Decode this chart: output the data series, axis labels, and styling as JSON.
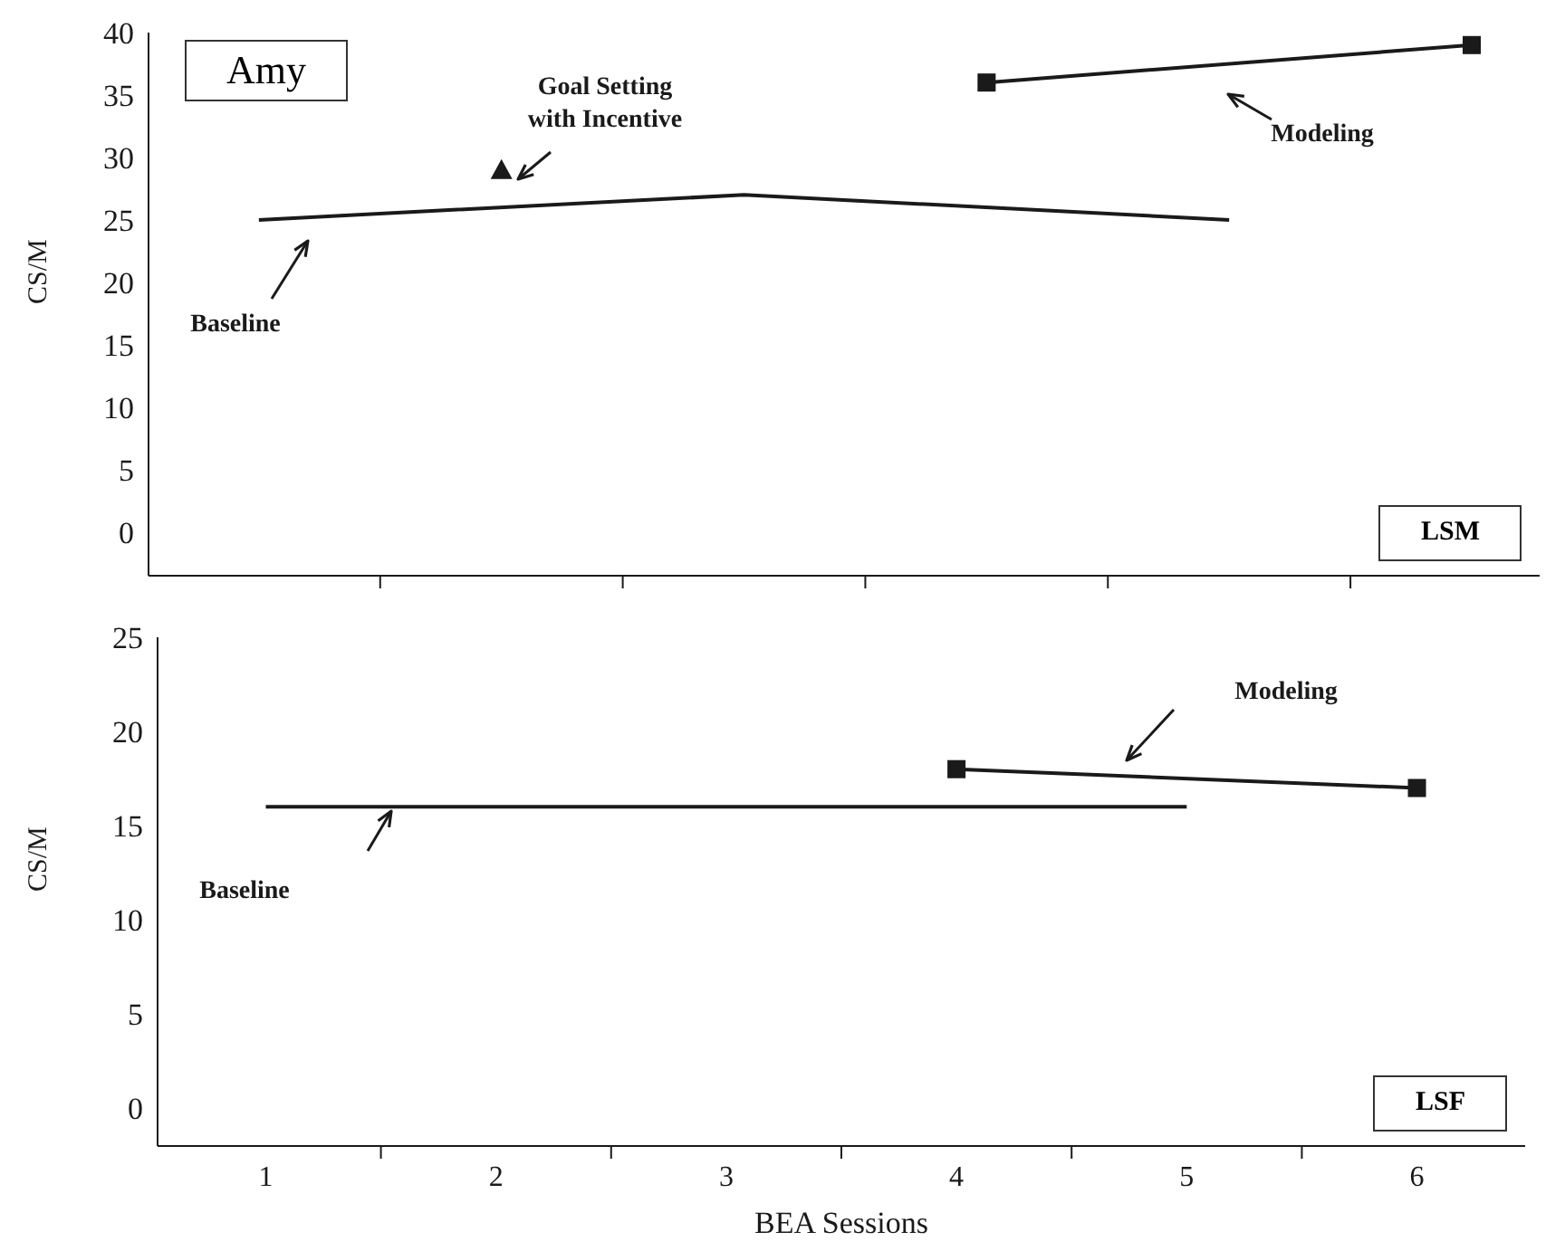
{
  "chart_data": [
    {
      "type": "line",
      "title": "Amy",
      "subtitle": "LSM",
      "ylabel": "CS/M",
      "categories": [
        null,
        null,
        null,
        null,
        null,
        null
      ],
      "ylim": [
        -3.5,
        40
      ],
      "yticks": [
        0,
        5,
        10,
        15,
        20,
        25,
        30,
        35,
        40
      ],
      "tick_labels": "y",
      "line_style": "solid",
      "series": [
        {
          "type": "line",
          "color": "#1a1a1a",
          "marker": "none",
          "values": [
            25,
            null,
            27,
            null,
            25,
            null
          ]
        },
        {
          "type": "scatter",
          "color": "#1a1a1a",
          "marker": "triangle",
          "values": [
            null,
            29,
            null,
            null,
            null,
            null
          ]
        },
        {
          "type": "line",
          "color": "#1a1a1a",
          "marker": "square",
          "values": [
            null,
            null,
            null,
            36,
            null,
            39
          ]
        }
      ],
      "annotations": [
        "Baseline",
        "Goal Setting with Incentive",
        "Modeling"
      ]
    },
    {
      "type": "line",
      "subtitle": "LSF",
      "xlabel": "BEA Sessions",
      "ylabel": "CS/M",
      "xlim": [
        0.53,
        6.47
      ],
      "xticks": [
        1,
        2,
        3,
        4,
        5,
        6,
        {
          "value": 1.5,
          "label": null
        },
        {
          "value": 2.5,
          "label": null
        },
        {
          "value": 3.5,
          "label": null
        },
        {
          "value": 4.5,
          "label": null
        },
        {
          "value": 5.5,
          "label": null
        }
      ],
      "ylim": [
        -2,
        25
      ],
      "yticks": [
        0,
        5,
        10,
        15,
        20,
        25
      ],
      "line_style": "solid",
      "series": [
        {
          "type": "line",
          "color": "#1a1a1a",
          "marker": "none",
          "x": [
            1,
            3,
            5
          ],
          "values": [
            16,
            16,
            16
          ]
        },
        {
          "type": "line",
          "color": "#1a1a1a",
          "marker": "square",
          "x": [
            4,
            6
          ],
          "values": [
            18,
            17
          ]
        }
      ],
      "annotations": [
        "Baseline",
        "Modeling"
      ]
    }
  ]
}
